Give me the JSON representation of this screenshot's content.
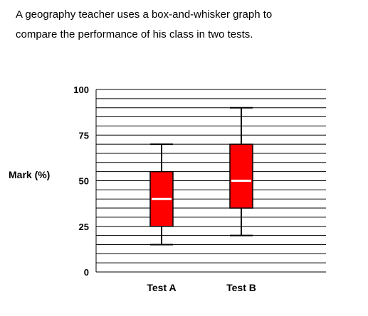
{
  "intro": {
    "line1": "A geography teacher uses a box-and-whisker graph to",
    "line2": "compare the performance of his class in two tests."
  },
  "chart_data": {
    "type": "boxplot",
    "title": "",
    "ylabel": "Mark (%)",
    "xlabel": "",
    "ylim": [
      0,
      100
    ],
    "yticks": [
      0,
      25,
      50,
      75,
      100
    ],
    "minor_grid_step": 5,
    "grid": true,
    "categories": [
      "Test A",
      "Test B"
    ],
    "boxes": [
      {
        "category": "Test A",
        "min": 15,
        "q1": 25,
        "median": 40,
        "q3": 55,
        "max": 70
      },
      {
        "category": "Test B",
        "min": 20,
        "q1": 35,
        "median": 50,
        "q3": 70,
        "max": 90
      }
    ],
    "box_color": "#ff0000",
    "median_color": "#ffffff",
    "whisker_color": "#000000"
  }
}
